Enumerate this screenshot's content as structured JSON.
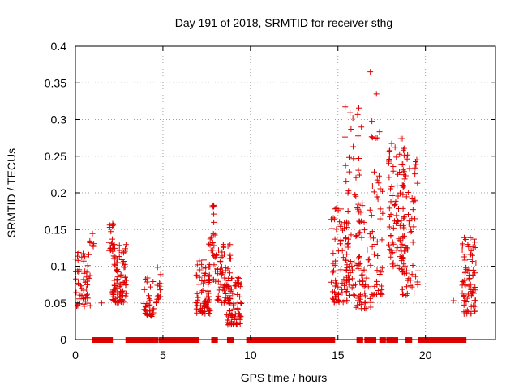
{
  "chart_data": {
    "type": "scatter",
    "title": "Day 191 of 2018, SRMTID for receiver sthg",
    "xlabel": "GPS time / hours",
    "ylabel": "SRMTID / TECUs",
    "xlim": [
      0,
      24
    ],
    "ylim": [
      0,
      0.4
    ],
    "x_ticks": [
      0,
      5,
      10,
      15,
      20
    ],
    "y_ticks": [
      0,
      0.05,
      0.1,
      0.15,
      0.2,
      0.25,
      0.3,
      0.35,
      0.4
    ],
    "x_tick_labels": [
      "0",
      "5",
      "10",
      "15",
      "20"
    ],
    "y_tick_labels": [
      "0",
      "0.05",
      "0.1",
      "0.15",
      "0.2",
      "0.25",
      "0.3",
      "0.35",
      "0.4"
    ],
    "grid": true,
    "marker": "+",
    "color": "#e00000",
    "clusters": [
      {
        "x0": 0.0,
        "x1": 0.85,
        "ymin": 0.045,
        "ymax": 0.12,
        "n": 55
      },
      {
        "x0": 0.8,
        "x1": 1.1,
        "ymin": 0.12,
        "ymax": 0.145,
        "n": 6
      },
      {
        "x0": 1.9,
        "x1": 2.2,
        "ymin": 0.12,
        "ymax": 0.165,
        "n": 14
      },
      {
        "x0": 2.1,
        "x1": 2.9,
        "ymin": 0.05,
        "ymax": 0.13,
        "n": 90
      },
      {
        "x0": 3.9,
        "x1": 4.5,
        "ymin": 0.03,
        "ymax": 0.085,
        "n": 35
      },
      {
        "x0": 4.6,
        "x1": 4.9,
        "ymin": 0.05,
        "ymax": 0.115,
        "n": 15
      },
      {
        "x0": 6.9,
        "x1": 7.7,
        "ymin": 0.035,
        "ymax": 0.11,
        "n": 70
      },
      {
        "x0": 7.6,
        "x1": 8.0,
        "ymin": 0.08,
        "ymax": 0.185,
        "n": 30
      },
      {
        "x0": 8.0,
        "x1": 8.9,
        "ymin": 0.05,
        "ymax": 0.13,
        "n": 60
      },
      {
        "x0": 8.6,
        "x1": 9.5,
        "ymin": 0.02,
        "ymax": 0.085,
        "n": 80
      },
      {
        "x0": 14.6,
        "x1": 15.6,
        "ymin": 0.05,
        "ymax": 0.18,
        "n": 80
      },
      {
        "x0": 15.4,
        "x1": 16.5,
        "ymin": 0.06,
        "ymax": 0.32,
        "n": 60
      },
      {
        "x0": 16.0,
        "x1": 16.9,
        "ymin": 0.04,
        "ymax": 0.19,
        "n": 55
      },
      {
        "x0": 16.9,
        "x1": 17.6,
        "ymin": 0.06,
        "ymax": 0.3,
        "n": 45
      },
      {
        "x0": 17.9,
        "x1": 18.8,
        "ymin": 0.09,
        "ymax": 0.28,
        "n": 85
      },
      {
        "x0": 18.6,
        "x1": 19.6,
        "ymin": 0.06,
        "ymax": 0.26,
        "n": 70
      },
      {
        "x0": 22.1,
        "x1": 22.9,
        "ymin": 0.035,
        "ymax": 0.14,
        "n": 75
      }
    ],
    "extra_points": [
      {
        "x": 16.85,
        "y": 0.365
      },
      {
        "x": 1.5,
        "y": 0.05
      },
      {
        "x": 21.6,
        "y": 0.053
      },
      {
        "x": 17.2,
        "y": 0.335
      }
    ],
    "zero_segments": [
      [
        1.1,
        2.0
      ],
      [
        3.0,
        4.0
      ],
      [
        4.2,
        4.6
      ],
      [
        4.9,
        6.95
      ],
      [
        7.9,
        8.0
      ],
      [
        8.8,
        8.9
      ],
      [
        9.9,
        14.7
      ],
      [
        16.2,
        16.3
      ],
      [
        16.65,
        17.05
      ],
      [
        17.5,
        17.6
      ],
      [
        17.9,
        18.3
      ],
      [
        19.0,
        19.1
      ],
      [
        19.7,
        22.2
      ]
    ]
  }
}
